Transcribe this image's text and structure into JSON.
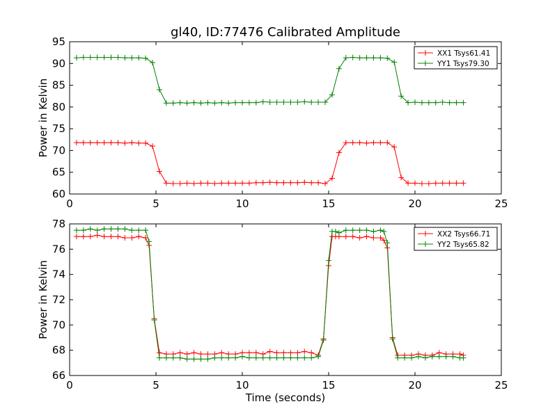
{
  "figure": {
    "title": "gl40, ID:77476 Calibrated Amplitude"
  },
  "chart_data": [
    {
      "type": "line",
      "title": "gl40, ID:77476 Calibrated Amplitude",
      "xlabel": "",
      "ylabel": "Power in Kelvin",
      "xlim": [
        0,
        25
      ],
      "ylim": [
        60,
        95
      ],
      "xticks": [
        0,
        5,
        10,
        15,
        20,
        25
      ],
      "yticks": [
        60,
        65,
        70,
        75,
        80,
        85,
        90,
        95
      ],
      "grid": false,
      "legend": "top-right",
      "x": [
        0.4,
        0.8,
        1.2,
        1.6,
        2.0,
        2.4,
        2.8,
        3.2,
        3.6,
        4.0,
        4.4,
        4.8,
        5.2,
        5.6,
        6.0,
        6.4,
        6.8,
        7.2,
        7.6,
        8.0,
        8.4,
        8.8,
        9.2,
        9.6,
        10.0,
        10.4,
        10.8,
        11.2,
        11.6,
        12.0,
        12.4,
        12.8,
        13.2,
        13.6,
        14.0,
        14.4,
        14.8,
        15.2,
        15.6,
        16.0,
        16.4,
        16.8,
        17.2,
        17.6,
        18.0,
        18.4,
        18.8,
        19.2,
        19.6,
        20.0,
        20.4,
        20.8,
        21.2,
        21.6,
        22.0,
        22.4,
        22.8
      ],
      "series": [
        {
          "name": "XX1 Tsys61.41",
          "color": "#ff0000",
          "values": [
            71.8,
            71.8,
            71.8,
            71.8,
            71.8,
            71.8,
            71.8,
            71.7,
            71.8,
            71.7,
            71.7,
            71.0,
            65.2,
            62.5,
            62.4,
            62.4,
            62.5,
            62.4,
            62.5,
            62.5,
            62.4,
            62.5,
            62.5,
            62.5,
            62.5,
            62.5,
            62.6,
            62.6,
            62.7,
            62.6,
            62.6,
            62.6,
            62.6,
            62.7,
            62.6,
            62.6,
            62.4,
            63.6,
            69.5,
            71.8,
            71.8,
            71.8,
            71.7,
            71.8,
            71.8,
            71.8,
            70.8,
            63.8,
            62.5,
            62.5,
            62.4,
            62.4,
            62.5,
            62.5,
            62.5,
            62.5,
            62.5
          ]
        },
        {
          "name": "YY1 Tsys79.30",
          "color": "#008000",
          "values": [
            91.3,
            91.4,
            91.4,
            91.4,
            91.4,
            91.4,
            91.4,
            91.3,
            91.3,
            91.3,
            91.2,
            90.2,
            84.0,
            80.9,
            80.9,
            81.0,
            80.9,
            81.0,
            80.9,
            81.0,
            80.9,
            81.0,
            80.9,
            81.0,
            81.0,
            81.0,
            81.0,
            81.2,
            81.1,
            81.1,
            81.1,
            81.1,
            81.1,
            81.2,
            81.1,
            81.1,
            81.1,
            82.8,
            88.8,
            91.3,
            91.4,
            91.3,
            91.3,
            91.3,
            91.3,
            91.2,
            90.3,
            82.5,
            81.0,
            81.1,
            81.0,
            81.0,
            81.0,
            81.1,
            81.0,
            81.0,
            81.0
          ]
        }
      ]
    },
    {
      "type": "line",
      "title": "",
      "xlabel": "Time (seconds)",
      "ylabel": "Power in Kelvin",
      "xlim": [
        0,
        25
      ],
      "ylim": [
        66,
        78
      ],
      "xticks": [
        0,
        5,
        10,
        15,
        20,
        25
      ],
      "yticks": [
        66,
        68,
        70,
        72,
        74,
        76,
        78
      ],
      "grid": false,
      "legend": "top-right",
      "x": [
        0.4,
        0.8,
        1.2,
        1.6,
        2.0,
        2.4,
        2.8,
        3.2,
        3.6,
        4.0,
        4.4,
        4.6,
        4.9,
        5.2,
        5.6,
        6.0,
        6.4,
        6.8,
        7.2,
        7.6,
        8.0,
        8.4,
        8.8,
        9.2,
        9.6,
        10.0,
        10.4,
        10.8,
        11.2,
        11.6,
        12.0,
        12.4,
        12.8,
        13.2,
        13.6,
        14.0,
        14.4,
        14.7,
        15.0,
        15.2,
        15.4,
        15.6,
        16.0,
        16.4,
        16.8,
        17.2,
        17.6,
        18.0,
        18.2,
        18.4,
        18.7,
        19.0,
        19.4,
        19.8,
        20.2,
        20.6,
        21.0,
        21.4,
        21.8,
        22.2,
        22.6,
        22.8
      ],
      "series": [
        {
          "name": "XX2 Tsys66.71",
          "color": "#ff0000",
          "values": [
            77.0,
            77.0,
            77.0,
            77.1,
            77.0,
            77.0,
            77.0,
            76.9,
            76.9,
            77.0,
            76.9,
            76.3,
            70.5,
            67.8,
            67.7,
            67.7,
            67.8,
            67.7,
            67.8,
            67.7,
            67.7,
            67.7,
            67.8,
            67.7,
            67.7,
            67.8,
            67.8,
            67.8,
            67.7,
            67.9,
            67.8,
            67.8,
            67.8,
            67.8,
            67.9,
            67.8,
            67.6,
            68.9,
            74.7,
            77.0,
            77.0,
            77.0,
            77.0,
            77.0,
            76.9,
            77.0,
            76.9,
            76.9,
            76.7,
            76.1,
            69.0,
            67.6,
            67.6,
            67.6,
            67.7,
            67.6,
            67.6,
            67.8,
            67.7,
            67.7,
            67.7,
            67.6
          ],
          "note": ""
        },
        {
          "name": "YY2 Tsys65.82",
          "color": "#008000",
          "values": [
            77.5,
            77.5,
            77.6,
            77.5,
            77.6,
            77.6,
            77.6,
            77.6,
            77.5,
            77.5,
            77.5,
            76.6,
            70.4,
            67.4,
            67.4,
            67.4,
            67.4,
            67.3,
            67.3,
            67.3,
            67.3,
            67.4,
            67.4,
            67.4,
            67.4,
            67.5,
            67.4,
            67.4,
            67.4,
            67.4,
            67.4,
            67.4,
            67.4,
            67.4,
            67.4,
            67.4,
            67.5,
            68.8,
            75.1,
            77.4,
            77.4,
            77.3,
            77.5,
            77.5,
            77.5,
            77.5,
            77.4,
            77.5,
            77.4,
            76.5,
            68.9,
            67.4,
            67.4,
            67.4,
            67.5,
            67.4,
            67.5,
            67.5,
            67.5,
            67.5,
            67.4,
            67.4
          ]
        }
      ]
    }
  ]
}
